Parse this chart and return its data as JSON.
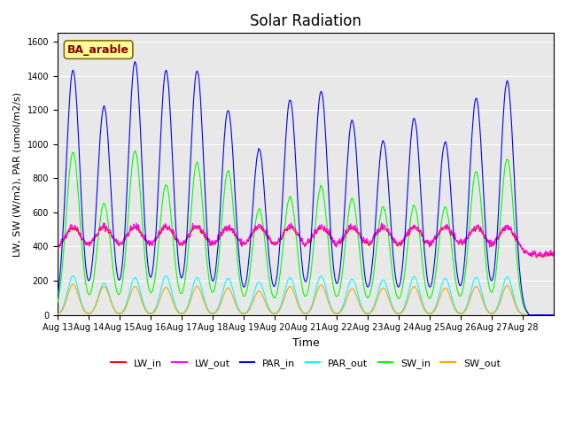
{
  "title": "Solar Radiation",
  "xlabel": "Time",
  "ylabel": "LW, SW (W/m2), PAR (umol/m2/s)",
  "annotation": "BA_arable",
  "ylim": [
    0,
    1650
  ],
  "yticks": [
    0,
    200,
    400,
    600,
    800,
    1000,
    1200,
    1400,
    1600
  ],
  "xtick_labels": [
    "Aug 13",
    "Aug 14",
    "Aug 15",
    "Aug 16",
    "Aug 17",
    "Aug 18",
    "Aug 19",
    "Aug 20",
    "Aug 21",
    "Aug 22",
    "Aug 23",
    "Aug 24",
    "Aug 25",
    "Aug 26",
    "Aug 27",
    "Aug 28"
  ],
  "colors": {
    "LW_in": "#ff0000",
    "LW_out": "#ff00ff",
    "PAR_in": "#0000ff",
    "PAR_out": "#00ffff",
    "SW_in": "#00ff00",
    "SW_out": "#ffa500"
  },
  "background_color": "#e8e8e8",
  "n_days": 16,
  "lw_in_base": 370,
  "par_in_peaks": [
    1430,
    1220,
    1480,
    1430,
    1430,
    1200,
    970,
    1260,
    1310,
    1140,
    1020,
    1150,
    1010,
    1270,
    1370,
    0
  ],
  "par_out_peaks": [
    240,
    195,
    230,
    240,
    230,
    225,
    205,
    230,
    240,
    220,
    215,
    235,
    225,
    230,
    235,
    0
  ],
  "sw_in_peaks": [
    950,
    650,
    960,
    760,
    890,
    840,
    620,
    690,
    750,
    680,
    630,
    640,
    630,
    840,
    910,
    0
  ],
  "sw_out_peaks": [
    200,
    185,
    185,
    180,
    185,
    175,
    155,
    185,
    195,
    170,
    175,
    185,
    175,
    185,
    190,
    0
  ]
}
